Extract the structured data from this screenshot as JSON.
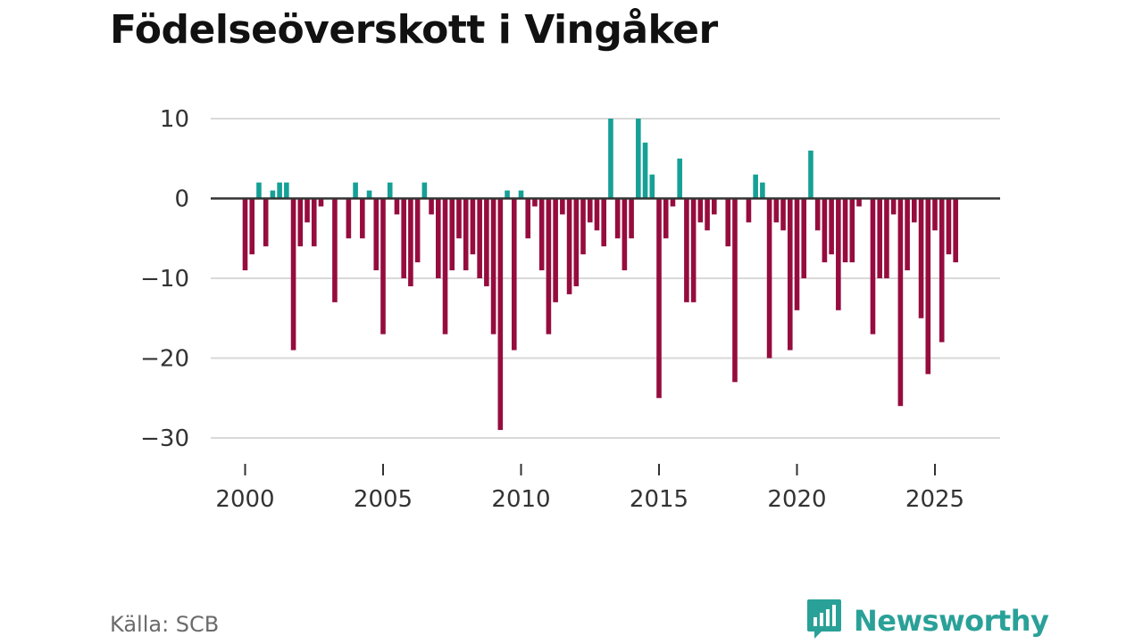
{
  "title": "Födelseöverskott i Vingåker",
  "source": "Källa: SCB",
  "brand": {
    "name": "Newsworthy",
    "icon": "newsworthy-logo-icon"
  },
  "colors": {
    "positive": "#16a096",
    "negative": "#960c3e",
    "grid": "#d9d9d9",
    "zero_line": "#333333"
  },
  "chart_data": {
    "type": "bar",
    "title": "Födelseöverskott i Vingåker",
    "xlabel": "",
    "ylabel": "",
    "x_ticks": [
      "2000",
      "2005",
      "2010",
      "2015",
      "2020",
      "2025"
    ],
    "y_ticks": [
      10,
      0,
      -10,
      -20,
      -30
    ],
    "y_tick_labels": [
      "10",
      "0",
      "−10",
      "−20",
      "−30"
    ],
    "xlim": [
      1999.5,
      2027
    ],
    "ylim": [
      -33,
      12
    ],
    "grid": true,
    "legend": "none",
    "x_start": 2000.0,
    "x_step": 0.25,
    "values": [
      -9,
      -7,
      2,
      -6,
      1,
      2,
      2,
      -19,
      -6,
      -3,
      -6,
      -1,
      0,
      -13,
      0,
      -5,
      2,
      -5,
      1,
      -9,
      -17,
      2,
      -2,
      -10,
      -11,
      -8,
      2,
      -2,
      -10,
      -17,
      -9,
      -5,
      -9,
      -7,
      -10,
      -11,
      -17,
      -29,
      1,
      -19,
      1,
      -5,
      -1,
      -9,
      -17,
      -13,
      -2,
      -12,
      -11,
      -7,
      -3,
      -4,
      -6,
      10,
      -5,
      -9,
      -5,
      10,
      7,
      3,
      -25,
      -5,
      -1,
      5,
      -13,
      -13,
      -3,
      -4,
      -2,
      0,
      -6,
      -23,
      0,
      -3,
      3,
      2,
      -20,
      -3,
      -4,
      -19,
      -14,
      -10,
      6,
      -4,
      -8,
      -7,
      -14,
      -8,
      -8,
      -1,
      0,
      -17,
      -10,
      -10,
      -2,
      -26,
      -9,
      -3,
      -15,
      -22,
      -4,
      -18,
      -7,
      -8
    ]
  }
}
